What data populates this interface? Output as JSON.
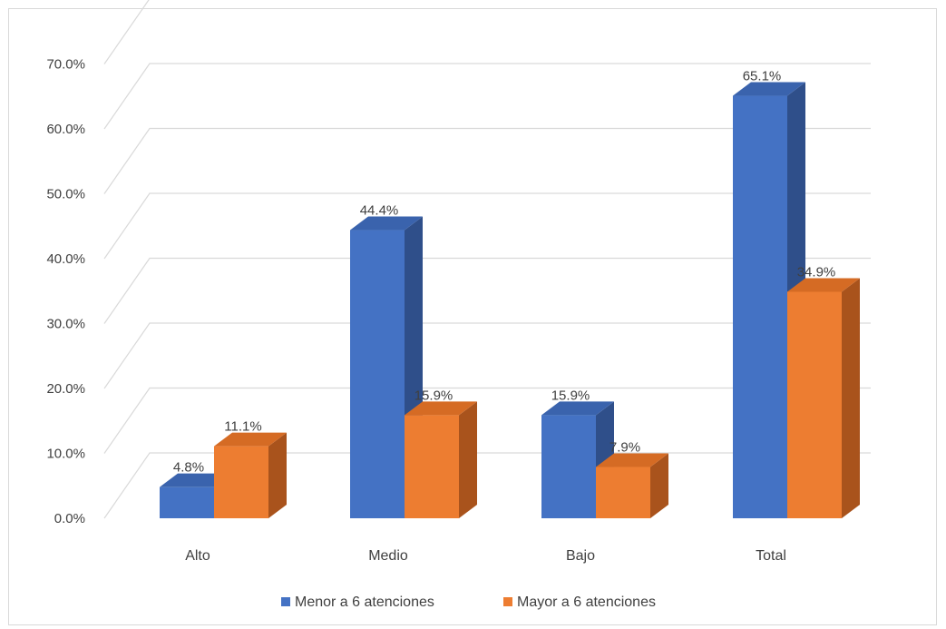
{
  "chart_data": {
    "type": "bar",
    "categories": [
      "Alto",
      "Medio",
      "Bajo",
      "Total"
    ],
    "series": [
      {
        "name": "Menor a 6 atenciones",
        "values": [
          4.8,
          44.4,
          15.9,
          65.1
        ],
        "labels": [
          "4.8%",
          "44.4%",
          "15.9%",
          "65.1%"
        ],
        "color": "#4472c4",
        "side_color": "#2f4f8a",
        "top_color": "#3a63ad"
      },
      {
        "name": "Mayor a 6 atenciones",
        "values": [
          11.1,
          15.9,
          7.9,
          34.9
        ],
        "labels": [
          "11.1%",
          "15.9%",
          "7.9%",
          "34.9%"
        ],
        "color": "#ed7d31",
        "side_color": "#a9531c",
        "top_color": "#d56b24"
      }
    ],
    "ylim": [
      0,
      70
    ],
    "yticks": [
      "0.0%",
      "10.0%",
      "20.0%",
      "30.0%",
      "40.0%",
      "50.0%",
      "60.0%",
      "70.0%"
    ],
    "ytick_values": [
      0,
      10,
      20,
      30,
      40,
      50,
      60,
      70
    ],
    "grid": true,
    "legend_position": "bottom",
    "title": "",
    "xlabel": "",
    "ylabel": ""
  }
}
